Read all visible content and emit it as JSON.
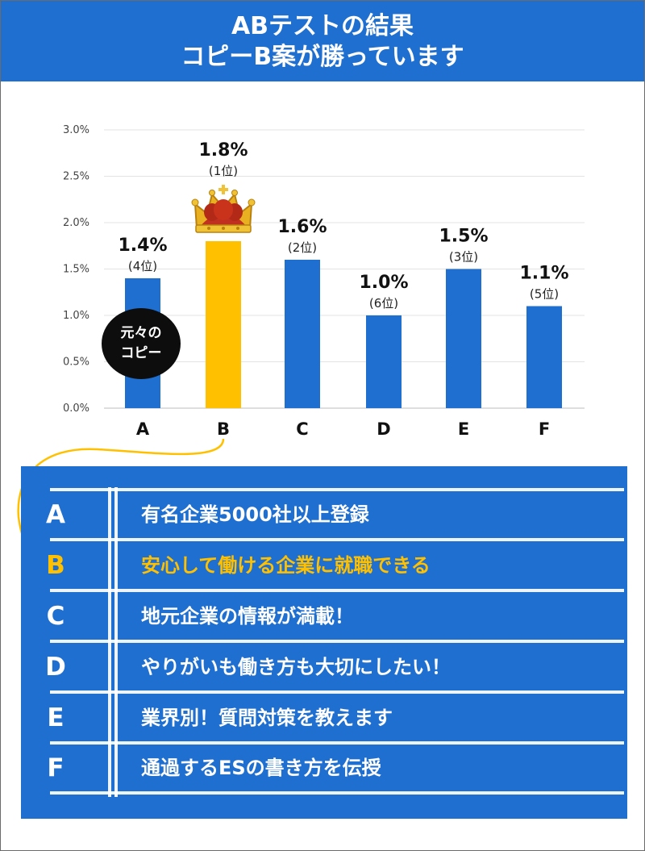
{
  "header": {
    "line1": "ABテストの結果",
    "line2": "コピーB案が勝っています"
  },
  "badge": {
    "line1": "元々の",
    "line2": "コピー"
  },
  "colors": {
    "brand_blue": "#1f6fd1",
    "highlight": "#ffc000",
    "crown": "gold-red"
  },
  "chart_data": {
    "type": "bar",
    "categories": [
      "A",
      "B",
      "C",
      "D",
      "E",
      "F"
    ],
    "values": [
      1.4,
      1.8,
      1.6,
      1.0,
      1.5,
      1.1
    ],
    "value_labels": [
      "1.4%",
      "1.8%",
      "1.6%",
      "1.0%",
      "1.5%",
      "1.1%"
    ],
    "rank_labels": [
      "(4位)",
      "(1位)",
      "(2位)",
      "(6位)",
      "(3位)",
      "(5位)"
    ],
    "highlight_index": 1,
    "ylim": [
      0,
      3.0
    ],
    "yticks": [
      "0.0%",
      "0.5%",
      "1.0%",
      "1.5%",
      "2.0%",
      "2.5%",
      "3.0%"
    ],
    "grid": true
  },
  "copy_list": [
    {
      "letter": "A",
      "text": "有名企業5000社以上登録",
      "highlight": false
    },
    {
      "letter": "B",
      "text": "安心して働ける企業に就職できる",
      "highlight": true
    },
    {
      "letter": "C",
      "text": "地元企業の情報が満載！",
      "highlight": false
    },
    {
      "letter": "D",
      "text": "やりがいも働き方も大切にしたい！",
      "highlight": false
    },
    {
      "letter": "E",
      "text": "業界別！質問対策を教えます",
      "highlight": false
    },
    {
      "letter": "F",
      "text": "通過するESの書き方を伝授",
      "highlight": false
    }
  ]
}
